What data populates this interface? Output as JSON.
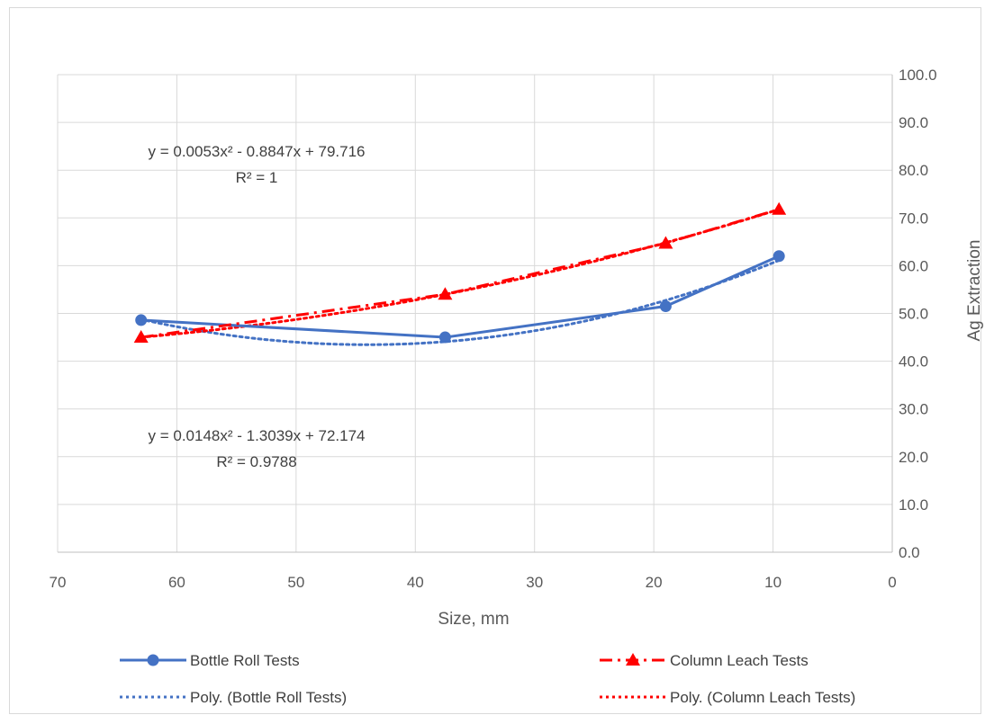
{
  "chart_data": {
    "type": "line",
    "xlabel": "Size, mm",
    "ylabel": "Ag Extraction",
    "xlim": [
      70,
      0
    ],
    "x_reversed": true,
    "ylim": [
      0,
      100
    ],
    "x_ticks": [
      "70",
      "60",
      "50",
      "40",
      "30",
      "20",
      "10",
      "0"
    ],
    "y_ticks": [
      "0.0",
      "10.0",
      "20.0",
      "30.0",
      "40.0",
      "50.0",
      "60.0",
      "70.0",
      "80.0",
      "90.0",
      "100.0"
    ],
    "y_axis_side": "right",
    "grid": true,
    "legend_position": "bottom",
    "series": [
      {
        "name": "Bottle Roll Tests",
        "x": [
          63,
          37.5,
          19,
          9.5
        ],
        "y": [
          48.6,
          45.0,
          51.5,
          62.0
        ],
        "color": "#4472c4",
        "marker": "circle",
        "line": "solid"
      },
      {
        "name": "Column Leach Tests",
        "x": [
          63,
          37.5,
          19,
          9.5
        ],
        "y": [
          45.0,
          54.0,
          64.7,
          71.8
        ],
        "color": "#ff0000",
        "marker": "triangle",
        "line": "dash-dot"
      }
    ],
    "trendlines": [
      {
        "name": "Poly. (Bottle Roll Tests)",
        "coefficients": [
          0.0148,
          -1.3039,
          72.174
        ],
        "color": "#4472c4",
        "equation": "y = 0.0148x² - 1.3039x + 72.174",
        "r2": "R² = 0.9788"
      },
      {
        "name": "Poly. (Column Leach Tests)",
        "coefficients": [
          0.0053,
          -0.8847,
          79.716
        ],
        "color": "#ff0000",
        "equation": "y = 0.0053x² - 0.8847x + 79.716",
        "r2": "R² = 1"
      }
    ]
  }
}
